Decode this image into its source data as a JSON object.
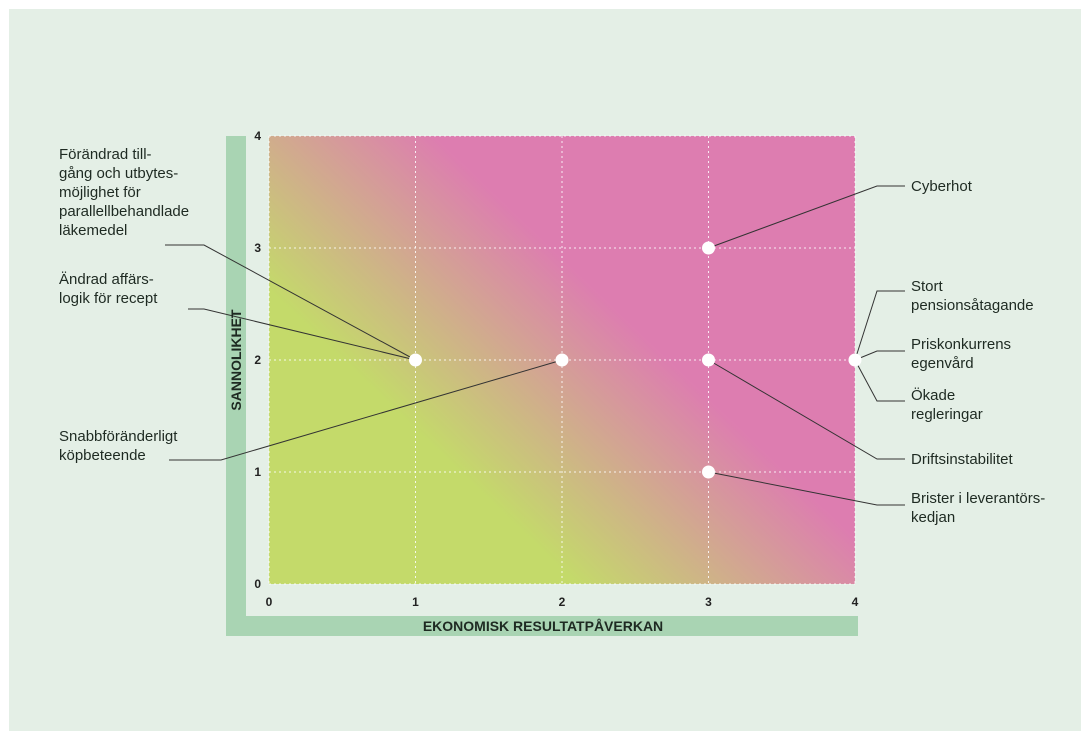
{
  "colors": {
    "background": "#e4efe6",
    "axis_band": "#a9d4b3",
    "low_risk": "#c4da6a",
    "high_risk": "#dd7db0",
    "grid": "#ffffff",
    "point": "#ffffff",
    "leader": "#333333"
  },
  "chart_data": {
    "type": "scatter",
    "title": "",
    "xlabel": "EKONOMISK RESULTATPÅVERKAN",
    "ylabel": "SANNOLIKHET",
    "xlim": [
      0,
      4
    ],
    "ylim": [
      0,
      4
    ],
    "xticks": [
      "0",
      "1",
      "2",
      "3",
      "4"
    ],
    "yticks": [
      "0",
      "1",
      "2",
      "3",
      "4"
    ],
    "grid": true,
    "background": "gradient green (low risk) to pink (high risk)",
    "points": [
      {
        "x": 1,
        "y": 2,
        "labels": [
          [
            "Förändrad till-",
            "gång och utbytes-",
            "möjlighet för",
            "parallellbehandlade",
            "läkemedel"
          ],
          [
            "Ändrad affärs-",
            "logik för recept"
          ]
        ]
      },
      {
        "x": 2,
        "y": 2,
        "labels": [
          [
            "Snabbföränderligt",
            "köpbeteende"
          ]
        ]
      },
      {
        "x": 3,
        "y": 3,
        "labels": [
          [
            "Cyberhot"
          ]
        ]
      },
      {
        "x": 3,
        "y": 2,
        "labels": [
          [
            "Driftsinstabilitet"
          ]
        ]
      },
      {
        "x": 3,
        "y": 1,
        "labels": [
          [
            "Brister i leverantörs-",
            "kedjan"
          ]
        ]
      },
      {
        "x": 4,
        "y": 2,
        "labels": [
          [
            "Stort",
            "pensionsåtagande"
          ],
          [
            "Priskonkurrens",
            "egenvård"
          ],
          [
            "Ökade",
            "regleringar"
          ]
        ]
      }
    ]
  }
}
